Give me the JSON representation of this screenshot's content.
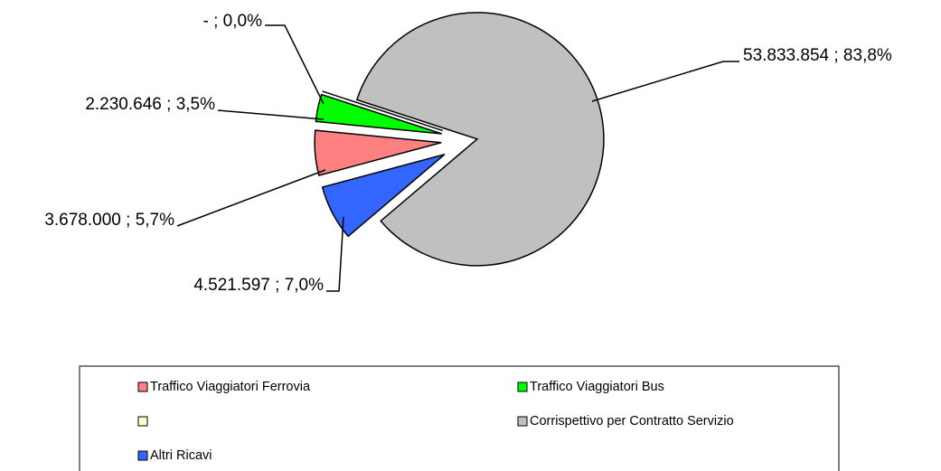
{
  "chart_data": {
    "type": "pie",
    "categories": [
      "Traffico Viaggiatori Ferrovia",
      "Traffico Viaggiatori Bus",
      null,
      "Corrispettivo per Contratto Servizio",
      "Altri Ricavi"
    ],
    "values": [
      3678000,
      2230646,
      0,
      53833854,
      4521597
    ],
    "value_labels": [
      "3.678.000  ; 5,7%",
      "2.230.646  ; 3,5%",
      "-   ; 0,0%",
      "53.833.854  ; 83,8%",
      "4.521.597  ; 7,0%"
    ],
    "colors": [
      "#ff8080",
      "#00ff00",
      "#ffffcc",
      "#c0c0c0",
      "#3366ff"
    ],
    "legend": "bottom"
  }
}
